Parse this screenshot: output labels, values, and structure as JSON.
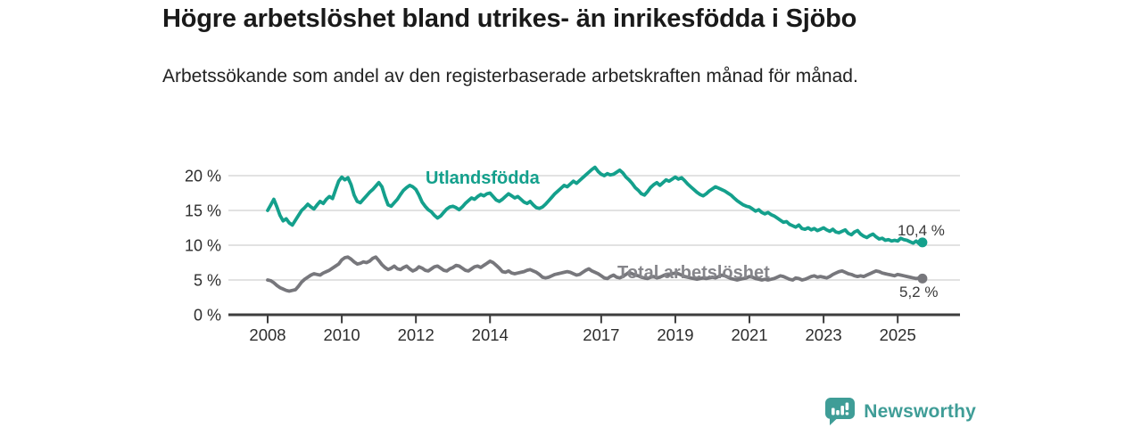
{
  "title": "Högre arbetslöshet bland utrikes- än inrikesfödda i Sjöbo",
  "subtitle": "Arbetssökande som andel av den registerbaserade arbetskraften månad för månad.",
  "footer": {
    "brand": "Newsworthy",
    "logo_icon": "newsworthy-chart-bubble-icon"
  },
  "colors": {
    "title_text": "#1a1a1a",
    "subtitle_text": "#222222",
    "axis_text": "#2d2d2d",
    "end_label_text": "#3a3a3a",
    "grid": "#d9d9d9",
    "axis": "#3d3d3d",
    "foreign_line": "#14a08c",
    "total_line": "#77777c",
    "total_label": "#85858a",
    "brand_teal": "#3f9d97"
  },
  "chart_data": {
    "type": "line",
    "frequency": "monthly",
    "x_start": "2008-01",
    "x_end": "2025-09",
    "grid": "horizontal-only",
    "y_ticks": [
      0,
      5,
      10,
      15,
      20
    ],
    "y_tick_labels": [
      "0 %",
      "5 %",
      "10 %",
      "15 %",
      "20 %"
    ],
    "x_ticks": [
      {
        "year": 2008,
        "label": "2008"
      },
      {
        "year": 2010,
        "label": "2010"
      },
      {
        "year": 2012,
        "label": "2012"
      },
      {
        "year": 2014,
        "label": "2014"
      },
      {
        "year": 2017,
        "label": "2017"
      },
      {
        "year": 2019,
        "label": "2019"
      },
      {
        "year": 2021,
        "label": "2021"
      },
      {
        "year": 2023,
        "label": "2023"
      },
      {
        "year": 2025,
        "label": "2025"
      }
    ],
    "series": [
      {
        "name": "Utlandsfödda",
        "color": "#14a08c",
        "end_label": "10,4 %",
        "end_value": 10.4,
        "values": [
          15.0,
          15.8,
          16.6,
          15.5,
          14.3,
          13.5,
          13.8,
          13.2,
          12.9,
          13.6,
          14.3,
          15.0,
          15.4,
          15.9,
          15.5,
          15.2,
          15.8,
          16.3,
          16.0,
          16.6,
          17.0,
          16.7,
          18.0,
          19.2,
          19.8,
          19.4,
          19.7,
          18.7,
          17.2,
          16.3,
          16.1,
          16.6,
          17.1,
          17.6,
          18.0,
          18.5,
          19.0,
          18.4,
          17.0,
          15.8,
          15.6,
          16.1,
          16.6,
          17.3,
          17.9,
          18.3,
          18.6,
          18.4,
          18.0,
          17.2,
          16.2,
          15.6,
          15.1,
          14.8,
          14.3,
          13.9,
          14.2,
          14.7,
          15.2,
          15.5,
          15.6,
          15.4,
          15.1,
          15.5,
          16.0,
          16.4,
          16.8,
          16.6,
          17.0,
          17.3,
          17.1,
          17.4,
          17.5,
          17.0,
          16.5,
          16.3,
          16.6,
          17.0,
          17.4,
          17.1,
          16.8,
          17.0,
          16.6,
          16.2,
          16.0,
          16.3,
          15.8,
          15.4,
          15.3,
          15.5,
          15.9,
          16.4,
          16.9,
          17.4,
          17.8,
          18.2,
          18.6,
          18.4,
          18.8,
          19.2,
          18.9,
          19.3,
          19.7,
          20.1,
          20.5,
          20.9,
          21.2,
          20.6,
          20.2,
          20.0,
          20.3,
          20.1,
          20.2,
          20.5,
          20.8,
          20.4,
          19.8,
          19.4,
          18.9,
          18.3,
          17.9,
          17.4,
          17.2,
          17.7,
          18.3,
          18.7,
          19.0,
          18.6,
          19.0,
          19.4,
          19.2,
          19.5,
          19.8,
          19.5,
          19.7,
          19.3,
          18.8,
          18.4,
          18.0,
          17.6,
          17.3,
          17.1,
          17.4,
          17.8,
          18.1,
          18.4,
          18.2,
          18.0,
          17.8,
          17.5,
          17.2,
          16.8,
          16.4,
          16.1,
          15.8,
          15.6,
          15.5,
          15.2,
          14.9,
          15.1,
          14.7,
          14.5,
          14.7,
          14.4,
          14.2,
          13.9,
          13.6,
          13.3,
          13.4,
          13.0,
          12.8,
          12.6,
          12.9,
          12.4,
          12.3,
          12.5,
          12.2,
          12.4,
          12.1,
          12.3,
          12.5,
          12.2,
          12.0,
          12.3,
          11.9,
          11.8,
          12.0,
          12.2,
          11.7,
          11.5,
          11.9,
          12.1,
          11.6,
          11.3,
          11.1,
          11.4,
          11.6,
          11.2,
          10.9,
          11.0,
          10.7,
          10.8,
          10.6,
          10.7,
          10.6,
          11.0,
          10.8,
          10.7,
          10.5,
          10.3,
          10.6,
          10.2,
          10.4
        ]
      },
      {
        "name": "Total arbetslöshet",
        "color": "#77777c",
        "end_label": "5,2 %",
        "end_value": 5.2,
        "values": [
          5.0,
          4.9,
          4.6,
          4.2,
          3.9,
          3.7,
          3.5,
          3.4,
          3.5,
          3.6,
          4.1,
          4.7,
          5.1,
          5.4,
          5.7,
          5.9,
          5.8,
          5.7,
          6.0,
          6.2,
          6.4,
          6.7,
          7.0,
          7.3,
          7.9,
          8.2,
          8.3,
          8.0,
          7.6,
          7.3,
          7.4,
          7.6,
          7.5,
          7.7,
          8.1,
          8.3,
          7.8,
          7.2,
          6.8,
          6.5,
          6.7,
          7.0,
          6.6,
          6.5,
          6.8,
          7.0,
          6.6,
          6.3,
          6.5,
          6.9,
          6.7,
          6.4,
          6.3,
          6.6,
          6.9,
          7.0,
          6.7,
          6.4,
          6.3,
          6.6,
          6.8,
          7.1,
          7.0,
          6.7,
          6.4,
          6.3,
          6.6,
          6.9,
          7.0,
          6.8,
          7.1,
          7.4,
          7.7,
          7.5,
          7.1,
          6.7,
          6.2,
          6.1,
          6.3,
          6.0,
          5.9,
          6.0,
          6.1,
          6.2,
          6.4,
          6.5,
          6.3,
          6.1,
          5.8,
          5.4,
          5.3,
          5.4,
          5.6,
          5.8,
          5.9,
          6.0,
          6.1,
          6.2,
          6.1,
          5.9,
          5.7,
          5.8,
          6.1,
          6.4,
          6.6,
          6.3,
          6.1,
          5.9,
          5.6,
          5.3,
          5.2,
          5.5,
          5.7,
          5.4,
          5.3,
          5.5,
          5.8,
          6.1,
          5.9,
          5.7,
          5.6,
          5.4,
          5.3,
          5.2,
          5.4,
          5.5,
          5.3,
          5.4,
          5.6,
          5.8,
          5.7,
          5.9,
          6.0,
          5.9,
          5.7,
          5.5,
          5.4,
          5.3,
          5.2,
          5.1,
          5.2,
          5.3,
          5.2,
          5.3,
          5.4,
          5.3,
          5.5,
          5.7,
          5.6,
          5.4,
          5.2,
          5.1,
          5.0,
          5.1,
          5.2,
          5.3,
          5.5,
          5.4,
          5.2,
          5.1,
          5.0,
          5.1,
          5.0,
          5.1,
          5.2,
          5.4,
          5.6,
          5.5,
          5.3,
          5.1,
          5.0,
          5.3,
          5.2,
          5.0,
          5.1,
          5.3,
          5.5,
          5.6,
          5.4,
          5.5,
          5.4,
          5.3,
          5.5,
          5.8,
          6.0,
          6.2,
          6.3,
          6.1,
          5.9,
          5.8,
          5.6,
          5.5,
          5.6,
          5.5,
          5.7,
          5.9,
          6.1,
          6.3,
          6.2,
          6.0,
          5.9,
          5.8,
          5.7,
          5.6,
          5.8,
          5.7,
          5.6,
          5.5,
          5.4,
          5.3,
          5.2,
          5.3,
          5.2
        ]
      }
    ]
  }
}
